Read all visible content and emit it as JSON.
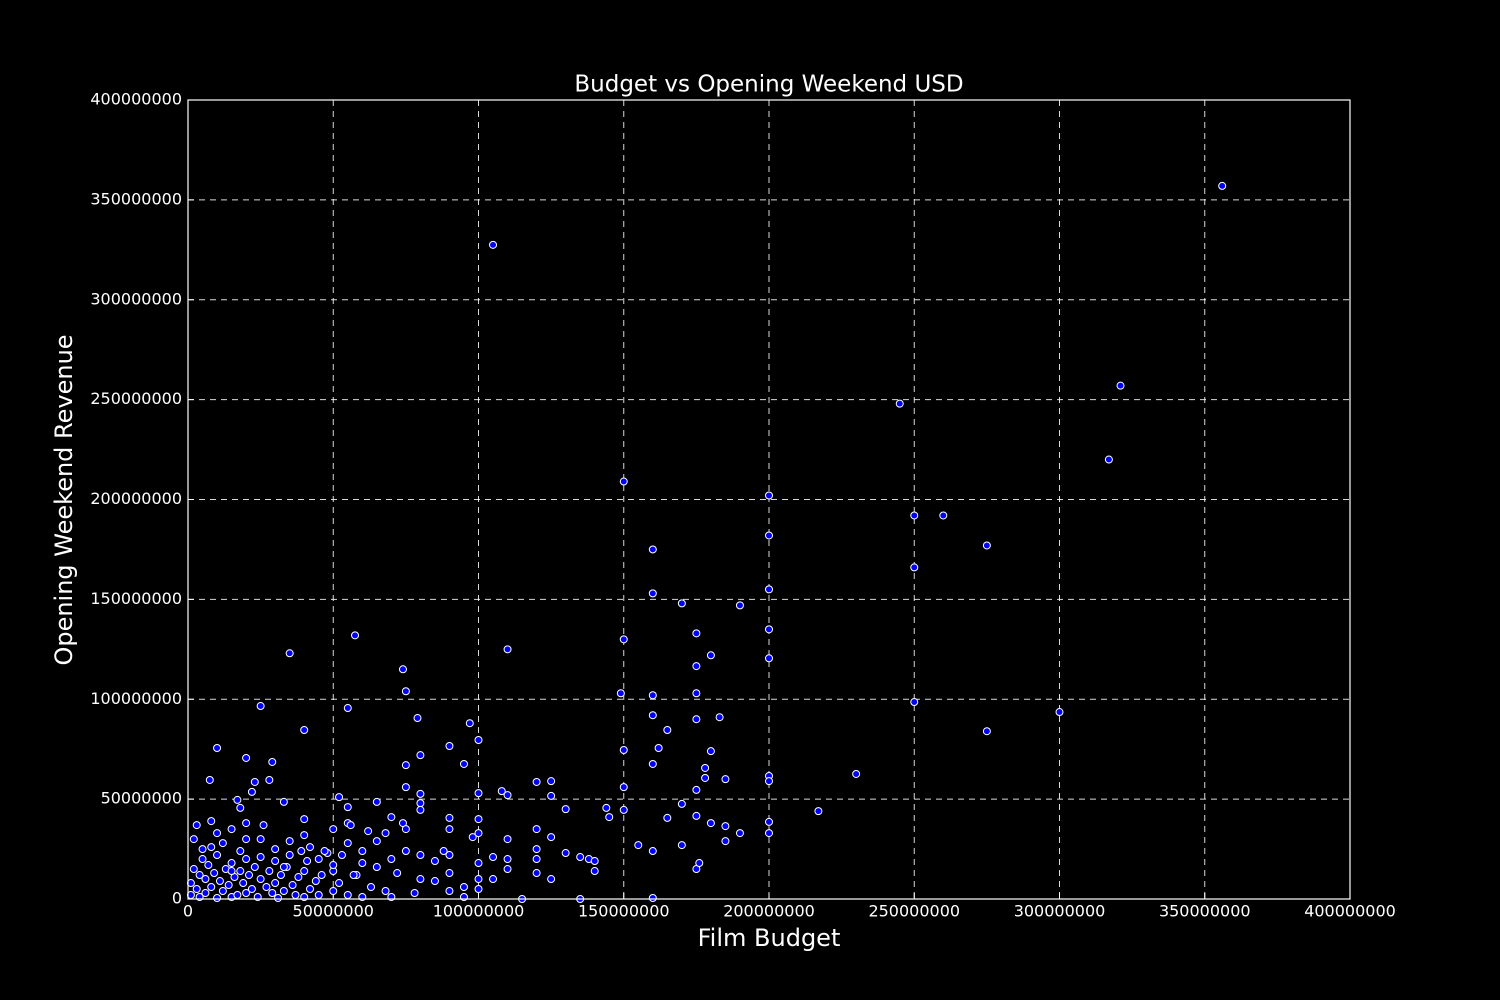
{
  "chart_data": {
    "type": "scatter",
    "title": "Budget vs Opening Weekend USD",
    "x_label": "Film Budget",
    "y_label": "Opening Weekend Revenue",
    "color": "#0000ff",
    "edge_color": "#ffffff",
    "grid": true,
    "xlim": [
      0,
      400000000
    ],
    "ylim": [
      0,
      400000000
    ],
    "xticks": [
      0,
      50000000,
      100000000,
      150000000,
      200000000,
      250000000,
      300000000,
      350000000,
      400000000
    ],
    "yticks": [
      0,
      50000000,
      100000000,
      150000000,
      200000000,
      250000000,
      300000000,
      350000000,
      400000000
    ],
    "x": [
      356000000.0,
      105000000.0,
      321000000.0,
      245000000.0,
      317000000.0,
      150000000.0,
      200000000.0,
      250000000.0,
      260000000.0,
      200000000.0,
      275000000.0,
      160000000.0,
      250000000.0,
      200000000.0,
      160000000.0,
      170000000.0,
      190000000.0,
      200000000.0,
      175000000.0,
      57500000.0,
      150000000.0,
      110000000.0,
      35000000.0,
      180000000.0,
      200000000.0,
      175000000.0,
      74000000.0,
      75000000.0,
      149000000.0,
      160000000.0,
      175000000.0,
      250000000.0,
      25000000.0,
      55000000.0,
      300000000.0,
      160000000.0,
      183000000.0,
      79000000.0,
      175000000.0,
      97000000.0,
      40000000.0,
      165000000.0,
      275000000.0,
      100000000.0,
      90000000.0,
      10000000.0,
      150000000.0,
      162000000.0,
      180000000.0,
      80000000.0,
      20000000.0,
      29000000.0,
      95000000.0,
      75000000.0,
      160000000.0,
      178000000.0,
      230000000.0,
      200000000.0,
      7500000.0,
      28000000.0,
      178000000.0,
      185000000.0,
      125000000.0,
      120000000.0,
      23000000.0,
      200000000.0,
      75000000.0,
      150000000.0,
      175000000.0,
      22000000.0,
      100000000.0,
      108000000.0,
      80000000.0,
      110000000.0,
      125000000.0,
      52000000.0,
      17000000.0,
      65000000.0,
      170000000.0,
      80000000.0,
      18000000.0,
      130000000.0,
      144000000.0,
      150000000.0,
      217000000.0,
      55000000.0,
      80000000.0,
      145000000.0,
      165000000.0,
      175000000.0,
      90000000.0,
      70000000.0,
      180000000.0,
      200000000.0,
      185000000.0,
      8000000.0,
      100000000.0,
      33000000.0,
      40000000.0,
      55000000.0,
      1000000.0,
      1000000.0,
      2000000.0,
      2000000.0,
      3000000.0,
      3000000.0,
      4000000.0,
      4000000.0,
      5000000.0,
      5000000.0,
      6000000.0,
      6000000.0,
      7000000.0,
      8000000.0,
      9000000.0,
      10000000.0,
      10000000.0,
      10000000.0,
      11000000.0,
      12000000.0,
      12000000.0,
      13000000.0,
      14000000.0,
      15000000.0,
      15000000.0,
      15000000.0,
      16000000.0,
      17000000.0,
      18000000.0,
      18000000.0,
      19000000.0,
      20000000.0,
      20000000.0,
      20000000.0,
      20000000.0,
      21000000.0,
      22000000.0,
      23000000.0,
      24000000.0,
      25000000.0,
      25000000.0,
      25000000.0,
      26000000.0,
      27000000.0,
      28000000.0,
      29000000.0,
      30000000.0,
      30000000.0,
      30000000.0,
      31000000.0,
      32000000.0,
      33000000.0,
      34000000.0,
      35000000.0,
      35000000.0,
      36000000.0,
      37000000.0,
      38000000.0,
      39000000.0,
      40000000.0,
      40000000.0,
      40000000.0,
      41000000.0,
      42000000.0,
      42000000.0,
      44000000.0,
      45000000.0,
      45000000.0,
      46000000.0,
      48000000.0,
      50000000.0,
      50000000.0,
      50000000.0,
      52000000.0,
      53000000.0,
      55000000.0,
      55000000.0,
      56000000.0,
      58000000.0,
      60000000.0,
      60000000.0,
      60000000.0,
      62000000.0,
      63000000.0,
      65000000.0,
      65000000.0,
      68000000.0,
      68000000.0,
      70000000.0,
      70000000.0,
      72000000.0,
      74000000.0,
      75000000.0,
      75000000.0,
      78000000.0,
      80000000.0,
      80000000.0,
      85000000.0,
      85000000.0,
      88000000.0,
      90000000.0,
      90000000.0,
      90000000.0,
      90000000.0,
      95000000.0,
      95000000.0,
      98000000.0,
      100000000.0,
      100000000.0,
      100000000.0,
      100000000.0,
      105000000.0,
      105000000.0,
      110000000.0,
      110000000.0,
      110000000.0,
      115000000.0,
      120000000.0,
      120000000.0,
      120000000.0,
      120000000.0,
      125000000.0,
      125000000.0,
      130000000.0,
      135000000.0,
      135000000.0,
      138000000.0,
      140000000.0,
      140000000.0,
      155000000.0,
      160000000.0,
      160000000.0,
      170000000.0,
      175000000.0,
      176000000.0,
      185000000.0,
      190000000.0,
      200000000.0,
      57000000.0,
      50000000.0,
      47000000.0,
      15000000.0,
      8000000.0,
      33000000.0
    ],
    "values": [
      357000000.0,
      327500000.0,
      257000000.0,
      248000000.0,
      220000000.0,
      209000000.0,
      202000000.0,
      192000000.0,
      192000000.0,
      182000000.0,
      177000000.0,
      175000000.0,
      166000000.0,
      155000000.0,
      153000000.0,
      148000000.0,
      147000000.0,
      135000000.0,
      133000000.0,
      132000000.0,
      130000000.0,
      125000000.0,
      123000000.0,
      122000000.0,
      120500000.0,
      116600000.0,
      115000000.0,
      104000000.0,
      103000000.0,
      102000000.0,
      103000000.0,
      98600000.0,
      96600000.0,
      95600000.0,
      93600000.0,
      92000000.0,
      91000000.0,
      90600000.0,
      90000000.0,
      88000000.0,
      84600000.0,
      84600000.0,
      84000000.0,
      79600000.0,
      76600000.0,
      75600000.0,
      74600000.0,
      75600000.0,
      74000000.0,
      72000000.0,
      70600000.0,
      68600000.0,
      67600000.0,
      67000000.0,
      67600000.0,
      65600000.0,
      62600000.0,
      61600000.0,
      59600000.0,
      59600000.0,
      60600000.0,
      60000000.0,
      59000000.0,
      58600000.0,
      58600000.0,
      59000000.0,
      56000000.0,
      56000000.0,
      54600000.0,
      53600000.0,
      53000000.0,
      54000000.0,
      52600000.0,
      52000000.0,
      51600000.0,
      51000000.0,
      49600000.0,
      48600000.0,
      47600000.0,
      48000000.0,
      45600000.0,
      45000000.0,
      45600000.0,
      44600000.0,
      44000000.0,
      46000000.0,
      44600000.0,
      41000000.0,
      40600000.0,
      41600000.0,
      40600000.0,
      41000000.0,
      38000000.0,
      38600000.0,
      36500000.0,
      39000000.0,
      40000000.0,
      48600000.0,
      40000000.0,
      38000000.0,
      2000000.0,
      8000000.0,
      15000000.0,
      30000000.0,
      5000000.0,
      37000000.0,
      12000000.0,
      1000000.0,
      20000000.0,
      25000000.0,
      3000000.0,
      10000000.0,
      17000000.0,
      6000000.0,
      13000000.0,
      500000.0,
      22000000.0,
      33000000.0,
      9000000.0,
      4000000.0,
      28000000.0,
      15000000.0,
      7000000.0,
      1000000.0,
      18000000.0,
      35000000.0,
      11000000.0,
      2000000.0,
      14000000.0,
      24000000.0,
      8000000.0,
      3000000.0,
      20000000.0,
      30000000.0,
      38000000.0,
      12000000.0,
      5000000.0,
      16000000.0,
      1000000.0,
      10000000.0,
      21000000.0,
      30000000.0,
      37000000.0,
      6000000.0,
      14000000.0,
      3000000.0,
      8000000.0,
      19000000.0,
      25000000.0,
      500000.0,
      12000000.0,
      4000000.0,
      16000000.0,
      22000000.0,
      29000000.0,
      7000000.0,
      2000000.0,
      11000000.0,
      24000000.0,
      1000000.0,
      14000000.0,
      32000000.0,
      19000000.0,
      5000000.0,
      26000000.0,
      9000000.0,
      20000000.0,
      2000000.0,
      12000000.0,
      23000000.0,
      4000000.0,
      14000000.0,
      35000000.0,
      8000000.0,
      22000000.0,
      2000000.0,
      28000000.0,
      37000000.0,
      12000000.0,
      1000000.0,
      18000000.0,
      24000000.0,
      34000000.0,
      6000000.0,
      16000000.0,
      29000000.0,
      4000000.0,
      33000000.0,
      20000000.0,
      1000000.0,
      13000000.0,
      38000000.0,
      24000000.0,
      35000000.0,
      3000000.0,
      10000000.0,
      22000000.0,
      9000000.0,
      19000000.0,
      24000000.0,
      4000000.0,
      13000000.0,
      22000000.0,
      35000000.0,
      1000000.0,
      6000000.0,
      31000000.0,
      5000000.0,
      10000000.0,
      18000000.0,
      33000000.0,
      10000000.0,
      21000000.0,
      15000000.0,
      20000000.0,
      30000000.0,
      0,
      13000000.0,
      20000000.0,
      25000000.0,
      35000000.0,
      10000000.0,
      31000000.0,
      23000000.0,
      0,
      21000000.0,
      20000000.0,
      14000000.0,
      19000000.0,
      27000000.0,
      24000000.0,
      500000.0,
      27000000.0,
      15000000.0,
      18000000.0,
      29000000.0,
      33000000.0,
      33000000.0,
      12000000.0,
      17000000.0,
      24000000.0,
      14000000.0,
      26000000.0,
      16000000.0
    ]
  }
}
